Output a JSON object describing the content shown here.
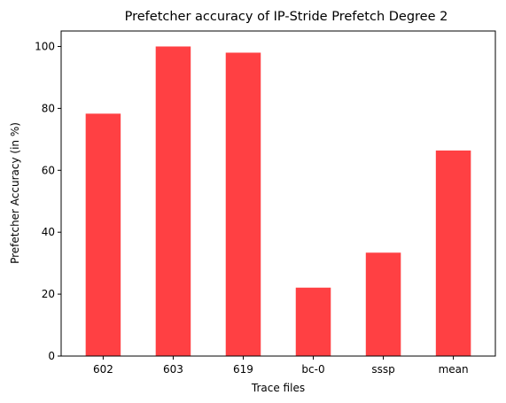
{
  "chart_data": {
    "type": "bar",
    "title": "Prefetcher accuracy of IP-Stride Prefetch Degree 2",
    "xlabel": "Trace files",
    "ylabel": "Prefetcher Accuracy (in %)",
    "categories": [
      "602",
      "603",
      "619",
      "bc-0",
      "sssp",
      "mean"
    ],
    "values": [
      78.3,
      100.0,
      98.0,
      22.1,
      33.4,
      66.4
    ],
    "ylim": [
      0,
      105
    ],
    "yticks": [
      0,
      20,
      40,
      60,
      80,
      100
    ],
    "bar_color": "#ff4043",
    "grid": false,
    "legend": "none"
  }
}
